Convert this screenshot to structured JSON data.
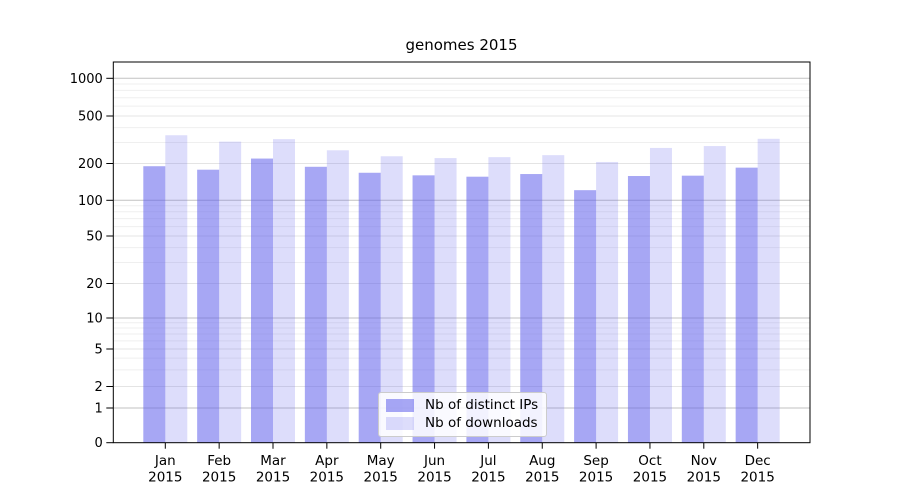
{
  "chart_data": {
    "type": "bar",
    "title": "genomes 2015",
    "categories": [
      "Jan",
      "Feb",
      "Mar",
      "Apr",
      "May",
      "Jun",
      "Jul",
      "Aug",
      "Sep",
      "Oct",
      "Nov",
      "Dec"
    ],
    "year_label": "2015",
    "series": [
      {
        "name": "Nb of distinct IPs",
        "color": "rgba(98,98,235,0.56)",
        "values": [
          190,
          178,
          220,
          188,
          168,
          160,
          156,
          164,
          121,
          158,
          159,
          185
        ]
      },
      {
        "name": "Nb of downloads",
        "color": "rgba(98,98,235,0.22)",
        "values": [
          345,
          305,
          320,
          258,
          230,
          222,
          226,
          235,
          206,
          270,
          280,
          322
        ]
      }
    ],
    "yscale": "symlog",
    "ylim": [
      0,
      1350
    ],
    "y_ticks": [
      0,
      1,
      2,
      5,
      10,
      20,
      50,
      100,
      200,
      500,
      1000
    ],
    "grid": true,
    "legend_position": "lower center"
  },
  "colors": {
    "grid_power10": "#c2c2c2",
    "grid_major": "#e4e4e4",
    "grid_minor": "#efefef",
    "spine": "#000000",
    "tick_text": "#000000"
  }
}
